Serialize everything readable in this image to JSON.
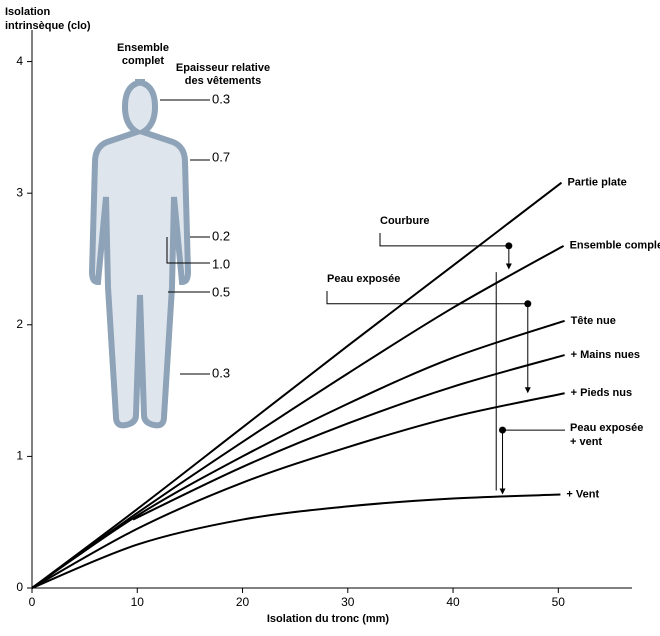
{
  "chart_data": {
    "type": "line",
    "ylabel": [
      "Isolation",
      "intrinsèque (clo)"
    ],
    "xlabel": "Isolation du tronc (mm)",
    "xlim": [
      0,
      57
    ],
    "ylim": [
      0,
      4.24
    ],
    "xticks": [
      0,
      10,
      20,
      30,
      40,
      50
    ],
    "yticks": [
      0,
      1,
      2,
      3,
      4
    ],
    "series": [
      {
        "name": "Partie plate",
        "color": "#000000",
        "x": [
          0,
          10,
          20,
          30,
          40,
          50.3
        ],
        "values": [
          0,
          0.6,
          1.22,
          1.84,
          2.45,
          3.08
        ]
      },
      {
        "name": "Ensemble complet",
        "color": "#000000",
        "x": [
          0,
          10,
          20,
          30,
          40,
          50.5
        ],
        "values": [
          0,
          0.57,
          1.11,
          1.63,
          2.13,
          2.6
        ]
      },
      {
        "name": "Tête nue",
        "color": "#000000",
        "x": [
          0,
          10,
          20,
          30,
          40,
          50.6
        ],
        "values": [
          0,
          0.55,
          1.0,
          1.4,
          1.75,
          2.03
        ]
      },
      {
        "name": "+ Mains nues",
        "color": "#000000",
        "x": [
          9.6,
          20,
          30,
          40,
          50.6
        ],
        "values": [
          0.52,
          0.92,
          1.25,
          1.53,
          1.77
        ]
      },
      {
        "name": "+ Pieds nus",
        "color": "#000000",
        "x": [
          0,
          10,
          20,
          30,
          40,
          50.6
        ],
        "values": [
          0,
          0.45,
          0.8,
          1.07,
          1.3,
          1.48
        ]
      },
      {
        "name": "+ Vent",
        "color": "#000000",
        "x": [
          0,
          10,
          20,
          30,
          40,
          50.2
        ],
        "values": [
          0,
          0.33,
          0.52,
          0.62,
          0.68,
          0.71
        ]
      }
    ],
    "annotations": [
      {
        "text": [
          "Courbure"
        ],
        "x": 45.3,
        "y": 2.6
      },
      {
        "text": [
          "Peau exposée"
        ],
        "x": 47.1,
        "y": 2.16
      },
      {
        "text": [
          "Peau exposée",
          "+ vent"
        ],
        "x": 44.7,
        "y": 1.2
      }
    ]
  },
  "inset": {
    "title": [
      "Ensemble",
      "complet"
    ],
    "subtitle": [
      "Epaisseur relative",
      "des vêtements"
    ],
    "labels": [
      "0.3",
      "0.7",
      "0.2",
      "1.0",
      "0.5",
      "0.3"
    ]
  }
}
